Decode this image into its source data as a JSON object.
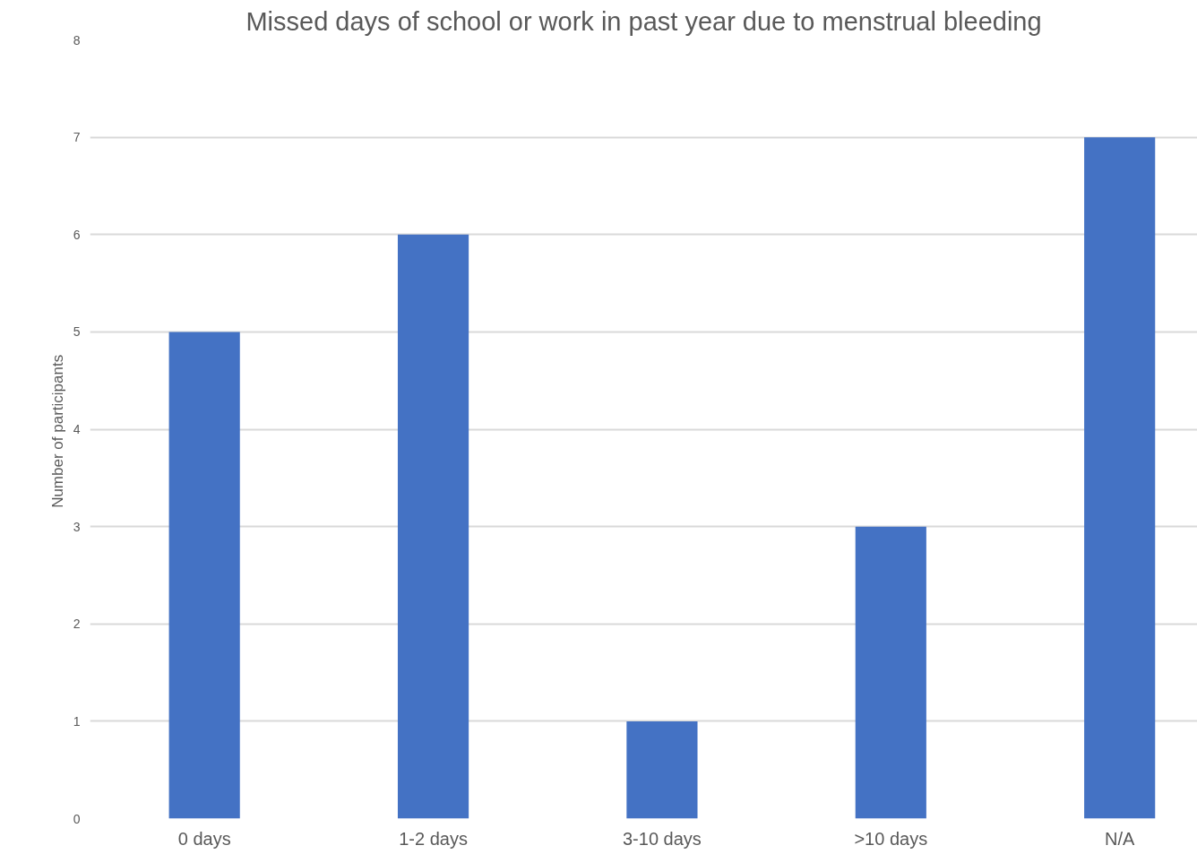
{
  "chart_data": {
    "type": "bar",
    "title": "Missed days of school or work in past year due to menstrual bleeding",
    "ylabel": "Number of  participants",
    "categories": [
      "0 days",
      "1-2 days",
      "3-10 days",
      ">10 days",
      "N/A"
    ],
    "values": [
      5,
      6,
      1,
      3,
      7
    ],
    "color": "#4472c4",
    "ylim": [
      0,
      8
    ],
    "yticks": [
      0,
      1,
      2,
      3,
      4,
      5,
      6,
      7,
      8
    ],
    "grid": "y"
  }
}
